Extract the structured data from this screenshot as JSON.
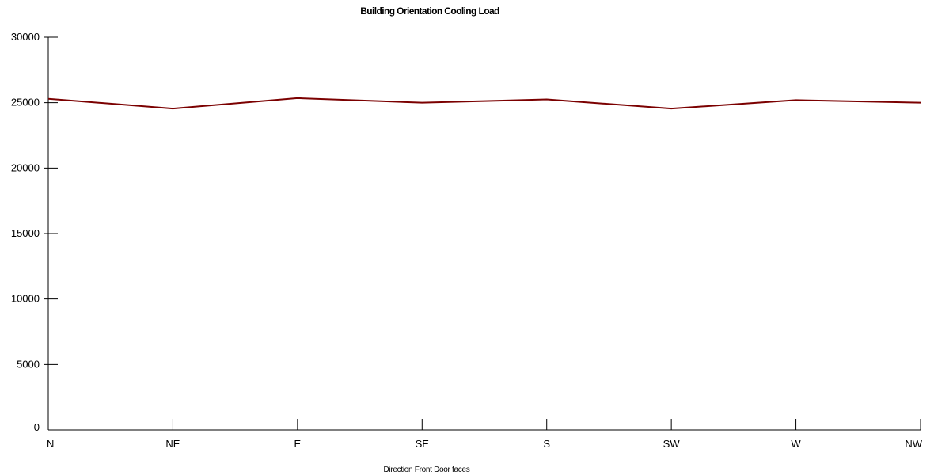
{
  "chart_data": {
    "type": "line",
    "title": "Building Orientation Cooling Load",
    "xlabel": "Direction Front Door faces",
    "ylabel": "",
    "categories": [
      "N",
      "NE",
      "E",
      "SE",
      "S",
      "SW",
      "W",
      "NW"
    ],
    "series": [
      {
        "values": [
          25300,
          24550,
          25350,
          25000,
          25250,
          24550,
          25200,
          25000
        ],
        "color": "#7b0000"
      }
    ],
    "ylim": [
      0,
      30000
    ],
    "yticks": [
      0,
      5000,
      10000,
      15000,
      20000,
      25000,
      30000
    ],
    "grid": false,
    "legend": "none"
  }
}
